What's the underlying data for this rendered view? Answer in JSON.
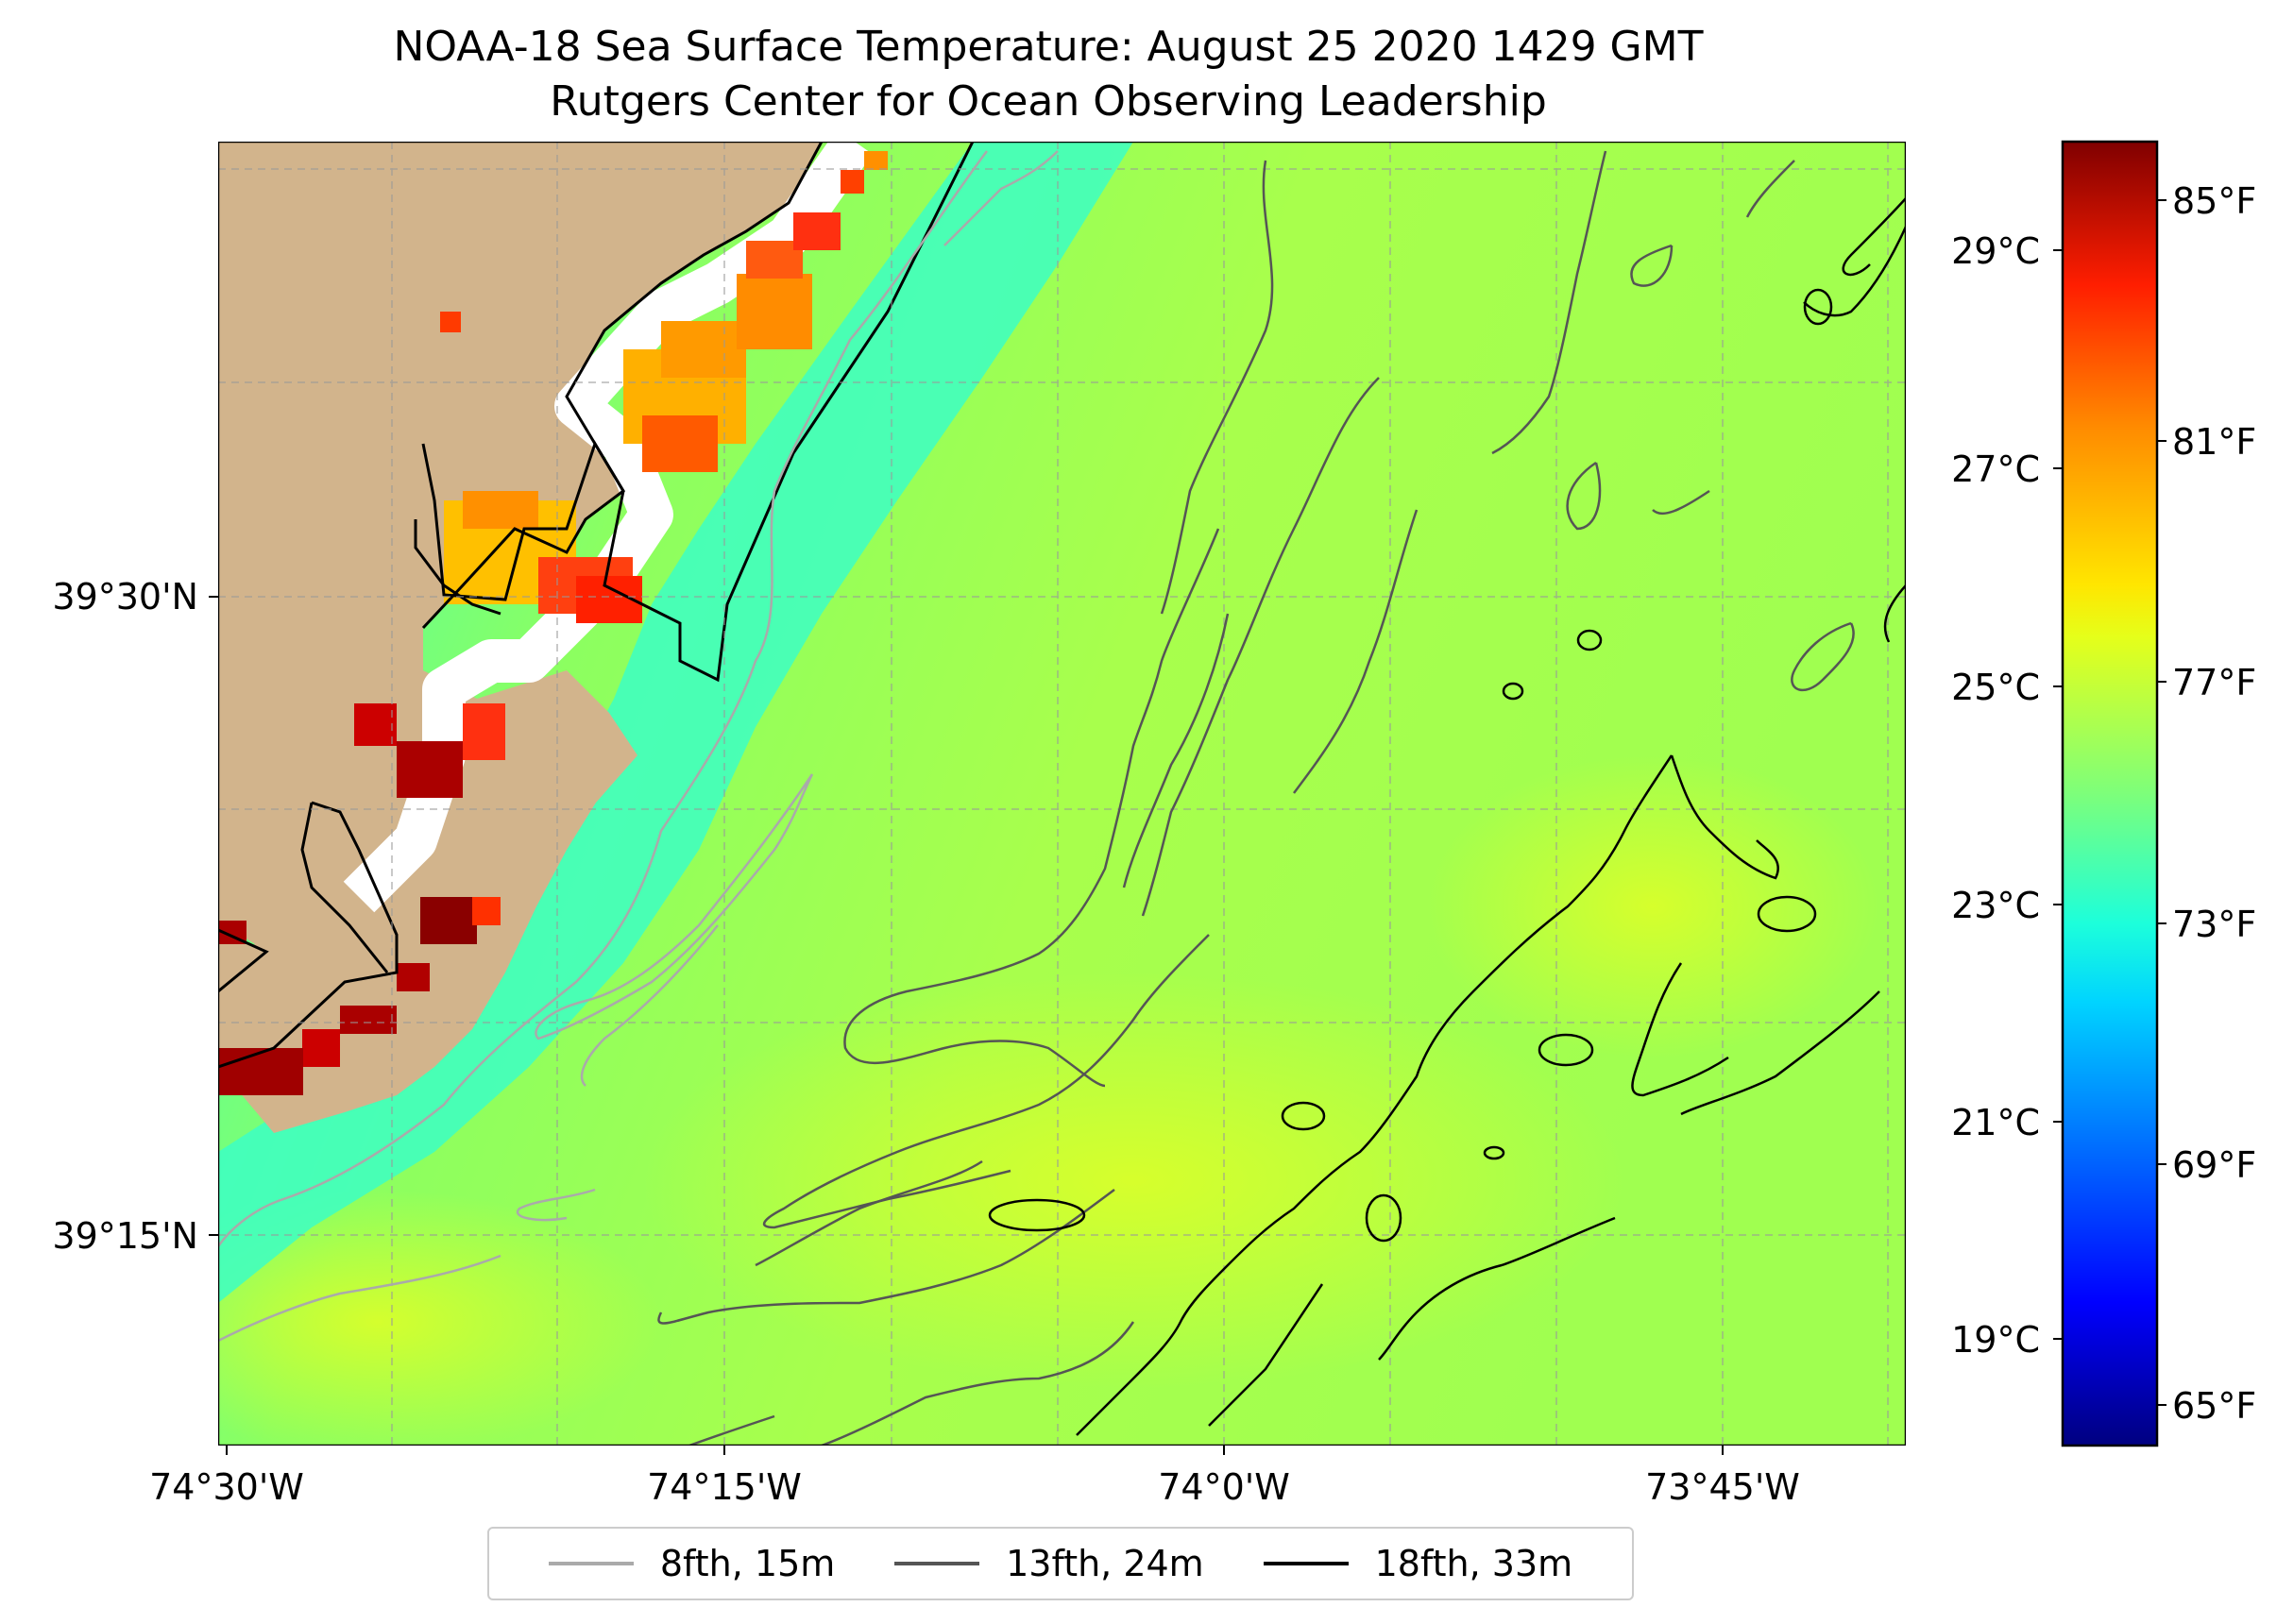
{
  "title": {
    "line1": "NOAA-18 Sea Surface Temperature: August 25 2020 1429 GMT",
    "line2": "Rutgers Center for Ocean Observing Leadership"
  },
  "map": {
    "x_ticks": [
      "74°30'W",
      "74°15'W",
      "74°0'W",
      "73°45'W"
    ],
    "y_ticks": [
      "39°30'N",
      "39°15'N"
    ],
    "land_color": "#d2b48c",
    "ocean_colors": {
      "nearshore": "#3cffc8",
      "offshore": "#a8ff50",
      "warm_pocket": "#d8ff2a"
    },
    "gridlines": true
  },
  "colorbar": {
    "celsius_ticks": [
      "29°C",
      "27°C",
      "25°C",
      "23°C",
      "21°C",
      "19°C"
    ],
    "fahrenheit_ticks": [
      "85°F",
      "81°F",
      "77°F",
      "73°F",
      "69°F",
      "65°F"
    ],
    "colormap": "jet",
    "range_f": [
      64,
      86
    ]
  },
  "legend": {
    "items": [
      {
        "label": "8fth, 15m",
        "color": "#aaaaaa"
      },
      {
        "label": "13fth, 24m",
        "color": "#555555"
      },
      {
        "label": "18fth, 33m",
        "color": "#000000"
      }
    ],
    "placement": "bottom-center"
  }
}
